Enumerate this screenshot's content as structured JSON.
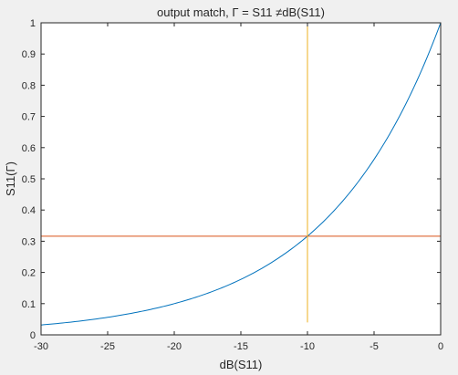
{
  "chart_data": {
    "type": "line",
    "title": "output match, Γ = S11 ≠dB(S11)",
    "xlabel": "dB(S11)",
    "ylabel": "S11(Γ)",
    "xlim": [
      -30,
      0
    ],
    "ylim": [
      0,
      1
    ],
    "xticks": [
      "-30",
      "-25",
      "-20",
      "-15",
      "-10",
      "-5",
      "0"
    ],
    "yticks": [
      "0",
      "0.1",
      "0.2",
      "0.3",
      "0.4",
      "0.5",
      "0.6",
      "0.7",
      "0.8",
      "0.9",
      "1"
    ],
    "grid": false,
    "series": [
      {
        "kind": "curve",
        "formula": "y = 10^(x/20)",
        "x": [
          -30,
          -27.5,
          -25,
          -22.5,
          -20,
          -17.5,
          -15,
          -12.5,
          -10,
          -7.5,
          -5,
          -2.5,
          0
        ],
        "y": [
          0.0316,
          0.0422,
          0.0562,
          0.075,
          0.1,
          0.1334,
          0.1778,
          0.2371,
          0.3162,
          0.4217,
          0.5623,
          0.7499,
          1.0
        ],
        "color": "#0072bd"
      },
      {
        "kind": "hline",
        "y": 0.3162,
        "color": "#d95319"
      },
      {
        "kind": "vline",
        "x": -10,
        "y_range": [
          0.04,
          1
        ],
        "color": "#edb120"
      }
    ],
    "colors": {
      "background": "#f0f0f0",
      "axes_bg": "#ffffff",
      "axis": "#262626"
    }
  }
}
